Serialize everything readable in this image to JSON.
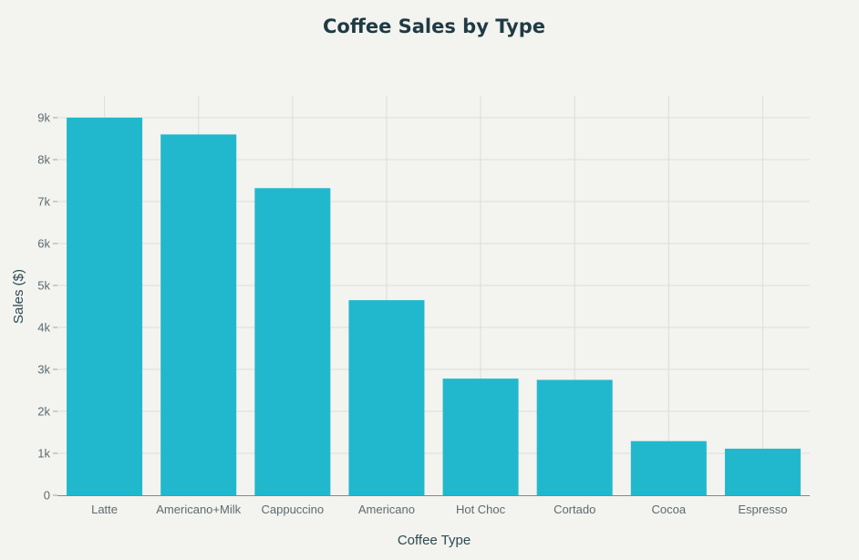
{
  "chart_data": {
    "type": "bar",
    "title": "Coffee Sales by Type",
    "xlabel": "Coffee Type",
    "ylabel": "Sales ($)",
    "categories": [
      "Latte",
      "Americano+Milk",
      "Cappuccino",
      "Americano",
      "Hot Choc",
      "Cortado",
      "Cocoa",
      "Espresso"
    ],
    "values": [
      9000,
      8600,
      7320,
      4650,
      2780,
      2750,
      1290,
      1110
    ],
    "ylim": [
      0,
      9500
    ],
    "yticks": [
      0,
      1000,
      2000,
      3000,
      4000,
      5000,
      6000,
      7000,
      8000,
      9000
    ],
    "ytick_labels": [
      "0",
      "1k",
      "2k",
      "3k",
      "4k",
      "5k",
      "6k",
      "7k",
      "8k",
      "9k"
    ],
    "grid": true,
    "bar_color": "#21b8cd",
    "background_color": "#f3f3ef"
  }
}
